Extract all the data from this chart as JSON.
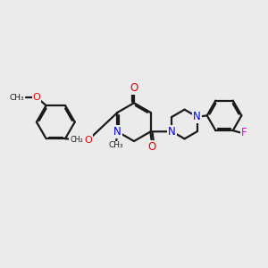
{
  "background_color": "#ebebeb",
  "bond_color": "#1a1a1a",
  "nitrogen_color": "#0000ee",
  "oxygen_color": "#ee0000",
  "fluorine_color": "#ee00ee",
  "line_width": 1.6,
  "dbo": 0.055,
  "shrink": 0.1,
  "xlim": [
    0,
    10
  ],
  "ylim": [
    0,
    10
  ]
}
